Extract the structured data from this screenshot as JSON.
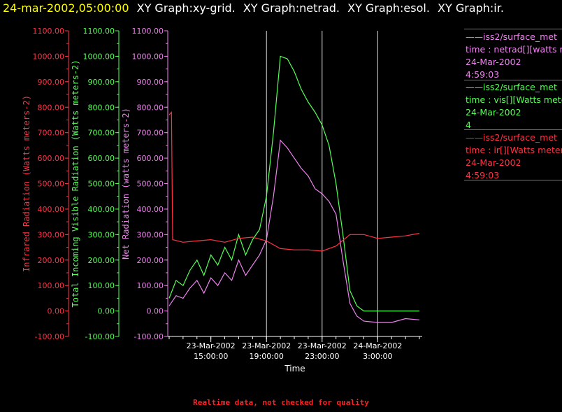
{
  "header": {
    "timestamp": "24-mar-2002,05:00:00",
    "graphs": [
      "XY Graph:xy-grid.",
      "XY Graph:netrad.",
      "XY Graph:esol.",
      "XY Graph:ir."
    ]
  },
  "legend": [
    {
      "line1": "——iss2/surface_met",
      "line2": "time : netrad[][watts m",
      "line3": "24-Mar-2002",
      "line4": "4:59:03",
      "color": "#ee82ee"
    },
    {
      "line1": "——iss2/surface_met",
      "line2": "time : vis[][Watts mete",
      "line3": "24-Mar-2002",
      "line4": "4",
      "color": "#55ff55"
    },
    {
      "line1": "——iss2/surface_met",
      "line2": "time : ir[][Watts meters",
      "line3": "24-Mar-2002",
      "line4": "4:59:03",
      "color": "#ff3344"
    }
  ],
  "footer": {
    "note": "Realtime data, not checked for quality",
    "color": "#ff2222"
  },
  "chart_data": {
    "type": "line",
    "xlabel": "Time",
    "xticks": [
      "23-Mar-2002\n15:00:00",
      "23-Mar-2002\n19:00:00",
      "23-Mar-2002\n23:00:00",
      "24-Mar-2002\n3:00:00"
    ],
    "xlim": [
      "2002-03-23T11:54",
      "2002-03-24T06:12"
    ],
    "vertical_gridlines_at": [
      "2002-03-23T19:00",
      "2002-03-23T23:00",
      "2002-03-24T03:00"
    ],
    "axes": [
      {
        "id": "ir",
        "label": "Infrared Radiation (Watts meters-2)",
        "ylim": [
          -100,
          1100
        ],
        "ticks": [
          "-100.00",
          "0.00",
          "100.00",
          "200.00",
          "300.00",
          "400.00",
          "500.00",
          "600.00",
          "700.00",
          "800.00",
          "900.00",
          "1000.00",
          "1100.00"
        ],
        "color": "#ff3344"
      },
      {
        "id": "vis",
        "label": "Total Incoming Visible Radiation (Watts meters-2)",
        "ylim": [
          -100,
          1100
        ],
        "ticks": [
          "-100.00",
          "0.00",
          "100.00",
          "200.00",
          "300.00",
          "400.00",
          "500.00",
          "600.00",
          "700.00",
          "800.00",
          "900.00",
          "1000.00",
          "1100.00"
        ],
        "color": "#55ff55"
      },
      {
        "id": "netrad",
        "label": "Net Radiation (watts meters-2)",
        "ylim": [
          -100,
          1100
        ],
        "ticks": [
          "-100.00",
          "0.00",
          "100.00",
          "200.00",
          "300.00",
          "400.00",
          "500.00",
          "600.00",
          "700.00",
          "800.00",
          "900.00",
          "1000.00",
          "1100.00"
        ],
        "color": "#ee82ee"
      }
    ],
    "series": [
      {
        "name": "iss2/surface_met vis",
        "axis": "vis",
        "color": "#55ff55",
        "x": [
          "2002-03-23T12:00",
          "2002-03-23T12:30",
          "2002-03-23T13:00",
          "2002-03-23T13:30",
          "2002-03-23T14:00",
          "2002-03-23T14:30",
          "2002-03-23T15:00",
          "2002-03-23T15:30",
          "2002-03-23T16:00",
          "2002-03-23T16:30",
          "2002-03-23T17:00",
          "2002-03-23T17:30",
          "2002-03-23T18:00",
          "2002-03-23T18:30",
          "2002-03-23T19:00",
          "2002-03-23T19:30",
          "2002-03-23T20:00",
          "2002-03-23T20:30",
          "2002-03-23T21:00",
          "2002-03-23T21:30",
          "2002-03-23T22:00",
          "2002-03-23T22:30",
          "2002-03-23T23:00",
          "2002-03-23T23:30",
          "2002-03-24T00:00",
          "2002-03-24T00:30",
          "2002-03-24T01:00",
          "2002-03-24T01:30",
          "2002-03-24T02:00",
          "2002-03-24T03:00",
          "2002-03-24T04:00",
          "2002-03-24T05:00",
          "2002-03-24T06:00"
        ],
        "values": [
          50,
          120,
          100,
          160,
          200,
          140,
          220,
          180,
          250,
          200,
          300,
          220,
          280,
          320,
          450,
          700,
          1000,
          990,
          940,
          870,
          820,
          780,
          730,
          650,
          500,
          300,
          80,
          20,
          0,
          0,
          0,
          0,
          0
        ]
      },
      {
        "name": "iss2/surface_met netrad",
        "axis": "netrad",
        "color": "#ee82ee",
        "x": [
          "2002-03-23T12:00",
          "2002-03-23T12:30",
          "2002-03-23T13:00",
          "2002-03-23T13:30",
          "2002-03-23T14:00",
          "2002-03-23T14:30",
          "2002-03-23T15:00",
          "2002-03-23T15:30",
          "2002-03-23T16:00",
          "2002-03-23T16:30",
          "2002-03-23T17:00",
          "2002-03-23T17:30",
          "2002-03-23T18:00",
          "2002-03-23T18:30",
          "2002-03-23T19:00",
          "2002-03-23T19:30",
          "2002-03-23T20:00",
          "2002-03-23T20:30",
          "2002-03-23T21:00",
          "2002-03-23T21:30",
          "2002-03-23T22:00",
          "2002-03-23T22:30",
          "2002-03-23T23:00",
          "2002-03-23T23:30",
          "2002-03-24T00:00",
          "2002-03-24T00:30",
          "2002-03-24T01:00",
          "2002-03-24T01:30",
          "2002-03-24T02:00",
          "2002-03-24T03:00",
          "2002-03-24T04:00",
          "2002-03-24T05:00",
          "2002-03-24T06:00"
        ],
        "values": [
          20,
          60,
          50,
          90,
          120,
          70,
          130,
          100,
          150,
          120,
          200,
          140,
          180,
          220,
          280,
          450,
          670,
          640,
          600,
          560,
          530,
          480,
          460,
          430,
          380,
          200,
          30,
          -20,
          -40,
          -45,
          -45,
          -30,
          -35
        ]
      },
      {
        "name": "iss2/surface_met ir",
        "axis": "ir",
        "color": "#ff3344",
        "x": [
          "2002-03-23T12:00",
          "2002-03-23T12:10",
          "2002-03-23T12:15",
          "2002-03-23T13:00",
          "2002-03-23T14:00",
          "2002-03-23T15:00",
          "2002-03-23T16:00",
          "2002-03-23T17:00",
          "2002-03-23T18:00",
          "2002-03-23T19:00",
          "2002-03-23T20:00",
          "2002-03-23T21:00",
          "2002-03-23T22:00",
          "2002-03-23T23:00",
          "2002-03-24T00:00",
          "2002-03-24T01:00",
          "2002-03-24T02:00",
          "2002-03-24T03:00",
          "2002-03-24T04:00",
          "2002-03-24T05:00",
          "2002-03-24T06:00"
        ],
        "values": [
          770,
          780,
          280,
          270,
          275,
          280,
          270,
          285,
          290,
          275,
          245,
          240,
          240,
          235,
          255,
          300,
          300,
          285,
          290,
          295,
          305
        ]
      }
    ]
  }
}
